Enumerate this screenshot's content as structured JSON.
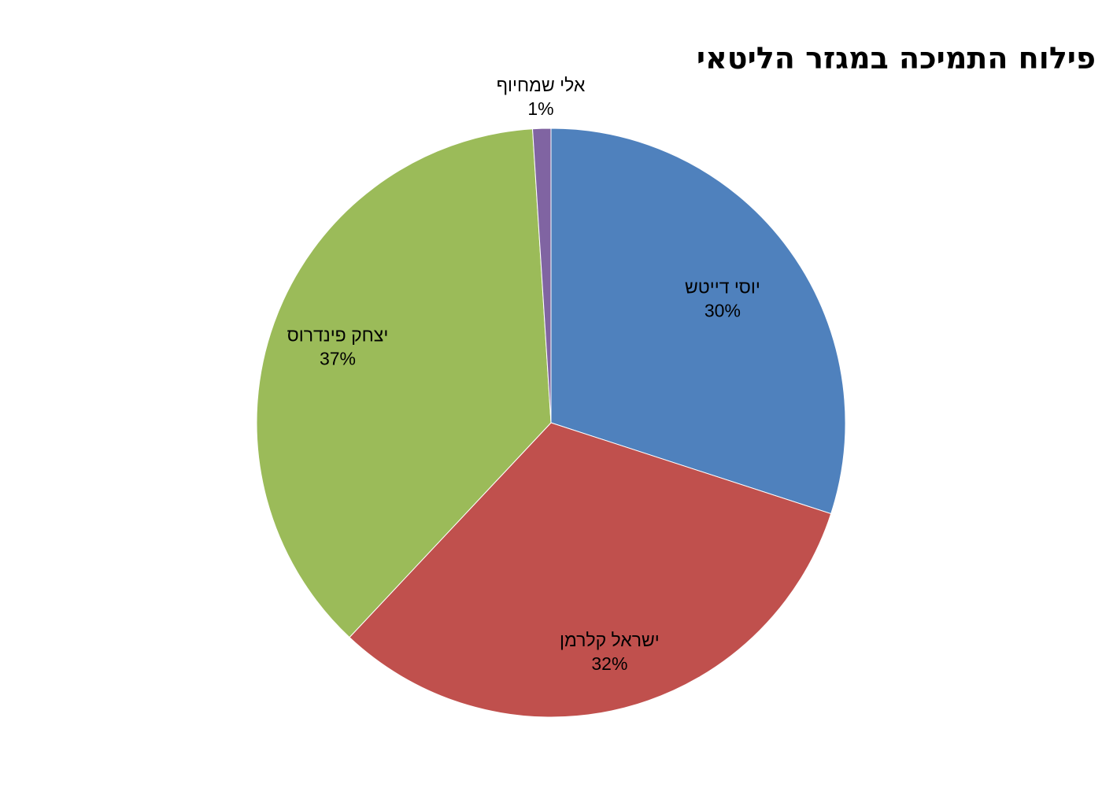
{
  "chart_data": {
    "type": "pie",
    "title": "פילוח התמיכה במגזר הליטאי",
    "slices": [
      {
        "name": "יוסי דייטש",
        "value": 30,
        "label": "30%",
        "color": "#4F81BD"
      },
      {
        "name": "ישראל קלרמן",
        "value": 32,
        "label": "32%",
        "color": "#C0504D"
      },
      {
        "name": "יצחק פינדרוס",
        "value": 37,
        "label": "37%",
        "color": "#9BBB59"
      },
      {
        "name": "אלי שמחיוף",
        "value": 1,
        "label": "1%",
        "color": "#8064A2"
      }
    ],
    "start": "12 o'clock",
    "direction": "clockwise",
    "legend": "none"
  }
}
